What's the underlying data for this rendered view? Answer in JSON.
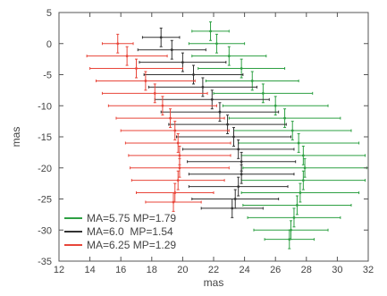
{
  "chart_data": {
    "type": "scatter",
    "title": "",
    "xlabel": "mas",
    "ylabel": "mas",
    "xlim": [
      12,
      32
    ],
    "ylim": [
      -35,
      5
    ],
    "xticks": [
      12,
      14,
      16,
      18,
      20,
      22,
      24,
      26,
      28,
      30,
      32
    ],
    "yticks": [
      5,
      0,
      -5,
      -10,
      -15,
      -20,
      -25,
      -30,
      -35
    ],
    "grid": false,
    "legend_position": "bottom-left",
    "series": [
      {
        "name": "MA=5.75 MP=1.79",
        "color": "#2ea043",
        "points": [
          {
            "x": 21.8,
            "y": 2.0,
            "xerr": 1.2,
            "yerr": 1.5
          },
          {
            "x": 22.2,
            "y": 0.0,
            "xerr": 1.8,
            "yerr": 1.5
          },
          {
            "x": 23.0,
            "y": -2.0,
            "xerr": 2.4,
            "yerr": 1.5
          },
          {
            "x": 23.8,
            "y": -4.0,
            "xerr": 2.8,
            "yerr": 1.5
          },
          {
            "x": 24.5,
            "y": -6.0,
            "xerr": 3.0,
            "yerr": 1.5
          },
          {
            "x": 25.2,
            "y": -8.0,
            "xerr": 3.2,
            "yerr": 1.5
          },
          {
            "x": 26.0,
            "y": -10.0,
            "xerr": 3.4,
            "yerr": 1.5
          },
          {
            "x": 26.6,
            "y": -12.0,
            "xerr": 3.6,
            "yerr": 1.5
          },
          {
            "x": 27.1,
            "y": -14.0,
            "xerr": 3.8,
            "yerr": 1.5
          },
          {
            "x": 27.5,
            "y": -16.0,
            "xerr": 3.9,
            "yerr": 1.5
          },
          {
            "x": 27.8,
            "y": -18.0,
            "xerr": 4.0,
            "yerr": 1.5
          },
          {
            "x": 27.9,
            "y": -20.0,
            "xerr": 4.0,
            "yerr": 1.5
          },
          {
            "x": 27.8,
            "y": -22.0,
            "xerr": 4.0,
            "yerr": 1.5
          },
          {
            "x": 27.6,
            "y": -24.0,
            "xerr": 3.8,
            "yerr": 1.5
          },
          {
            "x": 27.4,
            "y": -26.0,
            "xerr": 3.5,
            "yerr": 1.5
          },
          {
            "x": 27.2,
            "y": -28.0,
            "xerr": 3.0,
            "yerr": 1.5
          },
          {
            "x": 27.0,
            "y": -30.0,
            "xerr": 2.4,
            "yerr": 1.5
          },
          {
            "x": 26.9,
            "y": -31.5,
            "xerr": 1.6,
            "yerr": 1.5
          }
        ]
      },
      {
        "name": "MA=6.0  MP=1.54",
        "color": "#333333",
        "points": [
          {
            "x": 18.6,
            "y": 1.0,
            "xerr": 1.2,
            "yerr": 1.5
          },
          {
            "x": 19.3,
            "y": -1.0,
            "xerr": 2.2,
            "yerr": 1.5
          },
          {
            "x": 20.0,
            "y": -3.0,
            "xerr": 2.8,
            "yerr": 1.5
          },
          {
            "x": 20.7,
            "y": -5.0,
            "xerr": 3.2,
            "yerr": 1.5
          },
          {
            "x": 21.3,
            "y": -7.0,
            "xerr": 3.5,
            "yerr": 1.5
          },
          {
            "x": 21.9,
            "y": -9.0,
            "xerr": 3.7,
            "yerr": 1.5
          },
          {
            "x": 22.4,
            "y": -11.0,
            "xerr": 3.8,
            "yerr": 1.5
          },
          {
            "x": 22.9,
            "y": -13.0,
            "xerr": 3.8,
            "yerr": 1.5
          },
          {
            "x": 23.3,
            "y": -15.0,
            "xerr": 3.7,
            "yerr": 1.5
          },
          {
            "x": 23.6,
            "y": -17.0,
            "xerr": 3.6,
            "yerr": 1.5
          },
          {
            "x": 23.8,
            "y": -19.0,
            "xerr": 3.5,
            "yerr": 1.5
          },
          {
            "x": 23.8,
            "y": -21.0,
            "xerr": 3.4,
            "yerr": 1.5
          },
          {
            "x": 23.6,
            "y": -23.0,
            "xerr": 3.2,
            "yerr": 1.5
          },
          {
            "x": 23.4,
            "y": -25.0,
            "xerr": 2.8,
            "yerr": 1.5
          },
          {
            "x": 23.2,
            "y": -26.5,
            "xerr": 2.0,
            "yerr": 1.5
          }
        ]
      },
      {
        "name": "MA=6.25 MP=1.29",
        "color": "#e8463a",
        "points": [
          {
            "x": 15.8,
            "y": 0.0,
            "xerr": 1.0,
            "yerr": 1.5
          },
          {
            "x": 16.4,
            "y": -2.0,
            "xerr": 2.6,
            "yerr": 1.5
          },
          {
            "x": 17.0,
            "y": -4.0,
            "xerr": 3.0,
            "yerr": 1.5
          },
          {
            "x": 17.6,
            "y": -6.0,
            "xerr": 3.2,
            "yerr": 1.5
          },
          {
            "x": 18.2,
            "y": -8.0,
            "xerr": 3.4,
            "yerr": 1.5
          },
          {
            "x": 18.7,
            "y": -10.0,
            "xerr": 3.5,
            "yerr": 1.5
          },
          {
            "x": 19.2,
            "y": -12.0,
            "xerr": 3.5,
            "yerr": 1.5
          },
          {
            "x": 19.5,
            "y": -14.0,
            "xerr": 3.5,
            "yerr": 1.5
          },
          {
            "x": 19.7,
            "y": -16.0,
            "xerr": 3.4,
            "yerr": 1.5
          },
          {
            "x": 19.8,
            "y": -18.0,
            "xerr": 3.3,
            "yerr": 1.5
          },
          {
            "x": 19.8,
            "y": -20.0,
            "xerr": 3.2,
            "yerr": 1.5
          },
          {
            "x": 19.7,
            "y": -22.0,
            "xerr": 3.0,
            "yerr": 1.5
          },
          {
            "x": 19.5,
            "y": -24.0,
            "xerr": 2.5,
            "yerr": 1.5
          },
          {
            "x": 19.4,
            "y": -25.5,
            "xerr": 1.8,
            "yerr": 1.5
          }
        ]
      }
    ]
  }
}
